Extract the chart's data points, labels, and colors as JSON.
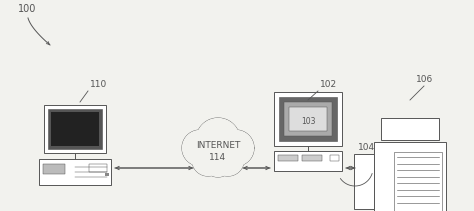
{
  "background_color": "#f2f2ee",
  "line_color": "#555555",
  "label_100": "100",
  "label_110": "110",
  "label_102": "102",
  "label_103": "103",
  "label_104": "104",
  "label_106": "106",
  "label_internet": "INTERNET",
  "label_114": "114",
  "fig_width": 4.74,
  "fig_height": 2.11,
  "dpi": 100
}
